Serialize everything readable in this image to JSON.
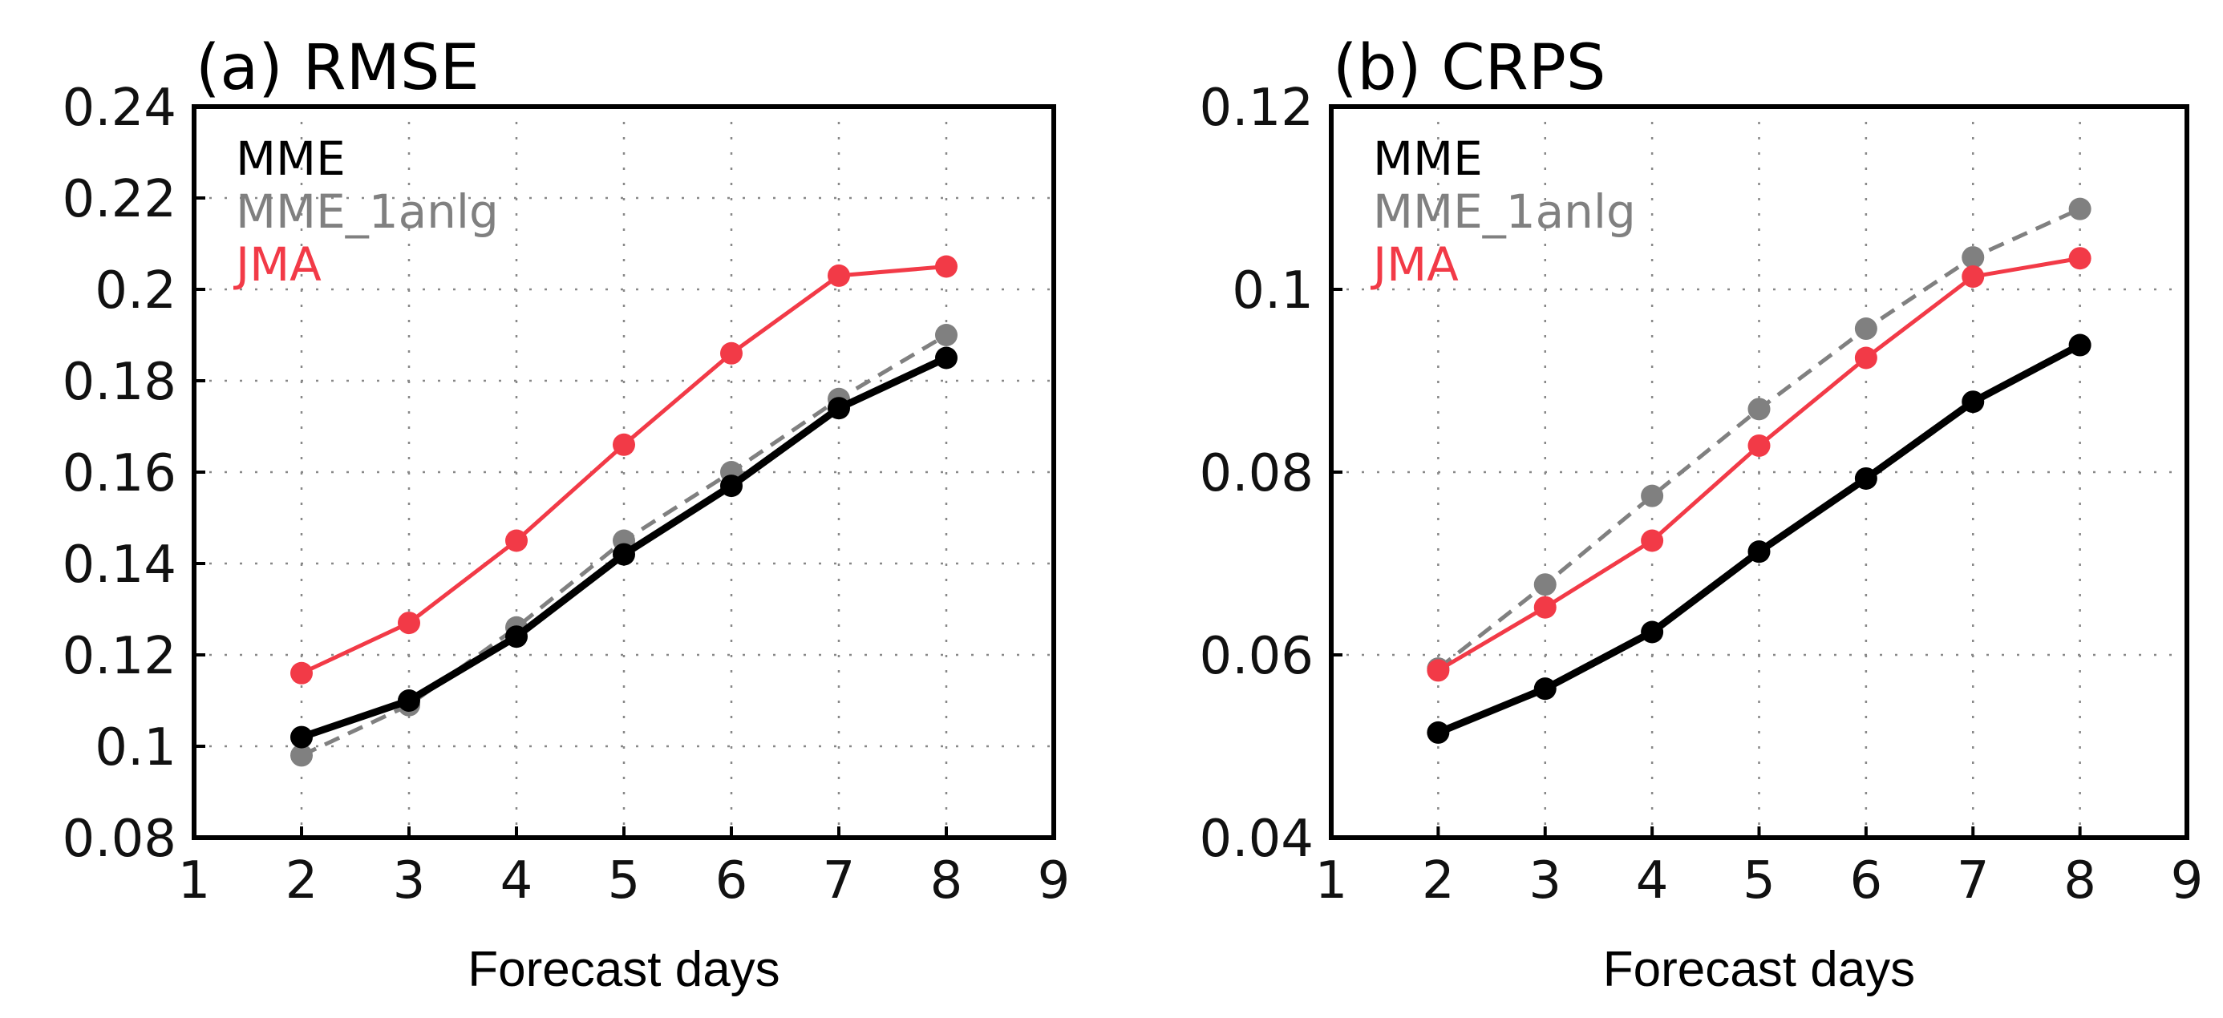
{
  "chart_data": [
    {
      "type": "line",
      "title": "(a) RMSE",
      "xlabel": "Forecast days",
      "ylabel": "",
      "xlim": [
        1,
        9
      ],
      "ylim": [
        0.08,
        0.24
      ],
      "xticks": [
        1,
        2,
        3,
        4,
        5,
        6,
        7,
        8,
        9
      ],
      "xtick_labels": [
        "1",
        "2",
        "3",
        "4",
        "5",
        "6",
        "7",
        "8",
        "9"
      ],
      "yticks": [
        0.08,
        0.1,
        0.12,
        0.14,
        0.16,
        0.18,
        0.2,
        0.22,
        0.24
      ],
      "ytick_labels": [
        "0.08",
        "0.1",
        "0.12",
        "0.14",
        "0.16",
        "0.18",
        "0.2",
        "0.22",
        "0.24"
      ],
      "grid": true,
      "legend": "top-left",
      "x": [
        2,
        3,
        4,
        5,
        6,
        7,
        8
      ],
      "series": [
        {
          "name": "MME",
          "color": "#000000",
          "style": "solid",
          "values": [
            0.102,
            0.11,
            0.124,
            0.142,
            0.157,
            0.174,
            0.185
          ]
        },
        {
          "name": "MME_1anlg",
          "color": "#808080",
          "style": "dashed",
          "values": [
            0.098,
            0.109,
            0.126,
            0.145,
            0.16,
            0.176,
            0.19
          ]
        },
        {
          "name": "JMA",
          "color": "#f23a47",
          "style": "solid",
          "values": [
            0.116,
            0.127,
            0.145,
            0.166,
            0.186,
            0.203,
            0.205
          ]
        }
      ]
    },
    {
      "type": "line",
      "title": "(b) CRPS",
      "xlabel": "Forecast days",
      "ylabel": "",
      "xlim": [
        1,
        9
      ],
      "ylim": [
        0.04,
        0.12
      ],
      "xticks": [
        1,
        2,
        3,
        4,
        5,
        6,
        7,
        8,
        9
      ],
      "xtick_labels": [
        "1",
        "2",
        "3",
        "4",
        "5",
        "6",
        "7",
        "8",
        "9"
      ],
      "yticks": [
        0.04,
        0.06,
        0.08,
        0.1,
        0.12
      ],
      "ytick_labels": [
        "0.04",
        "0.06",
        "0.08",
        "0.1",
        "0.12"
      ],
      "grid": true,
      "legend": "top-left",
      "x": [
        2,
        3,
        4,
        5,
        6,
        7,
        8
      ],
      "series": [
        {
          "name": "MME",
          "color": "#000000",
          "style": "solid",
          "values": [
            0.0515,
            0.0563,
            0.0625,
            0.0713,
            0.0793,
            0.0877,
            0.0939
          ]
        },
        {
          "name": "MME_1anlg",
          "color": "#808080",
          "style": "dashed",
          "values": [
            0.0585,
            0.0677,
            0.0774,
            0.0869,
            0.0957,
            0.1035,
            0.1088
          ]
        },
        {
          "name": "JMA",
          "color": "#f23a47",
          "style": "solid",
          "values": [
            0.0583,
            0.0652,
            0.0725,
            0.0829,
            0.0925,
            0.1014,
            0.1034
          ]
        }
      ]
    }
  ]
}
